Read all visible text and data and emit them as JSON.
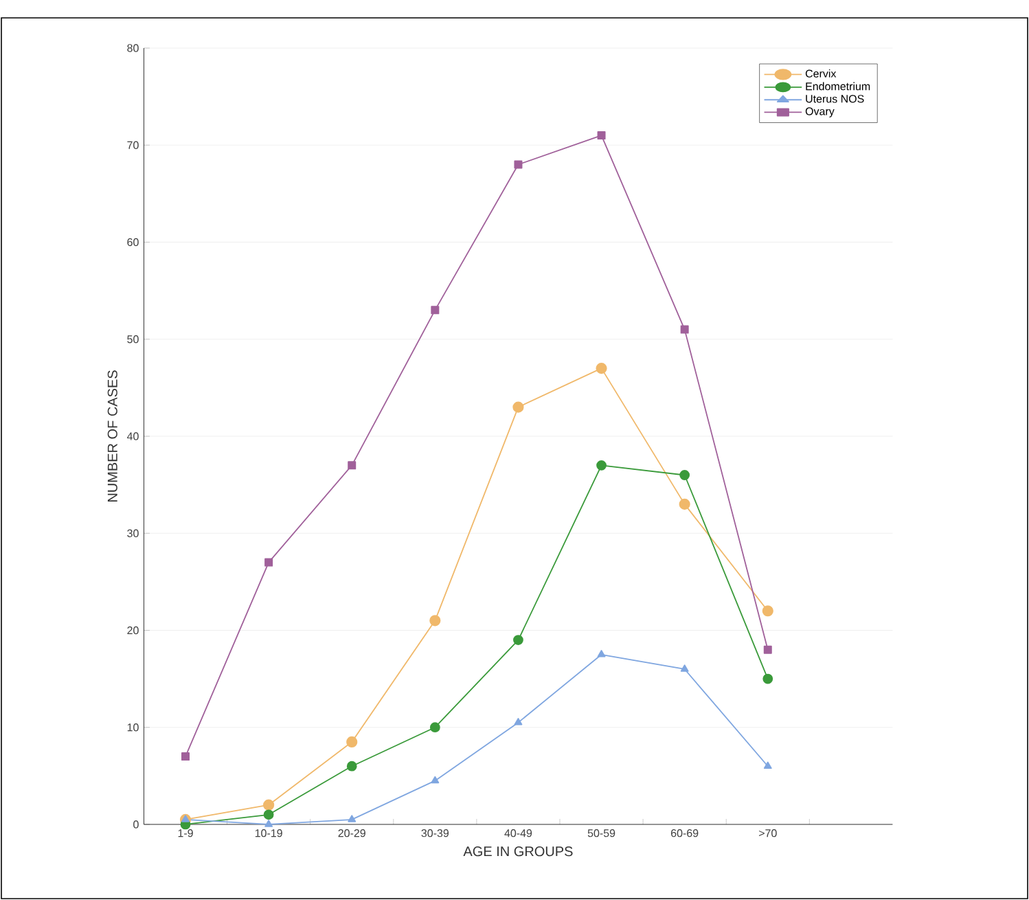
{
  "chart_data": {
    "type": "line",
    "xlabel": "AGE IN GROUPS",
    "ylabel": "NUMBER OF CASES",
    "categories": [
      "1-9",
      "10-19",
      "20-29",
      "30-39",
      "40-49",
      "50-59",
      "60-69",
      ">70",
      null
    ],
    "series": [
      {
        "name": "Cervix",
        "color": "#f0b86a",
        "marker": "circle",
        "values": [
          0.5,
          2,
          8.5,
          21,
          43,
          47,
          33,
          22,
          null
        ]
      },
      {
        "name": "Endometrium",
        "color": "#3a9a3a",
        "marker": "circle",
        "values": [
          0,
          1,
          6,
          10,
          19,
          37,
          36,
          15,
          null
        ]
      },
      {
        "name": "Uterus NOS",
        "color": "#7fa6e0",
        "marker": "triangle",
        "values": [
          0.5,
          0,
          0.5,
          4.5,
          10.5,
          17.5,
          16,
          6,
          null
        ]
      },
      {
        "name": "Ovary",
        "color": "#a0609a",
        "marker": "square",
        "values": [
          7,
          27,
          37,
          53,
          68,
          71,
          51,
          18,
          null
        ]
      }
    ],
    "ylim": [
      0,
      80
    ],
    "yticks": [
      0,
      10,
      20,
      30,
      40,
      50,
      60,
      70,
      80
    ],
    "grid": "y",
    "legend": "top right",
    "line_style": "solid"
  }
}
